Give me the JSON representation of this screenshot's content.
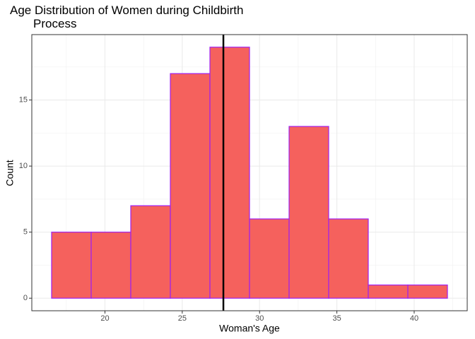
{
  "chart_data": {
    "type": "histogram",
    "title": "Age Distribution of Women during Childbirth\n       Process",
    "x_label": "Woman's Age",
    "y_label": "Count",
    "bins": [
      16.55,
      19.11,
      21.67,
      24.23,
      26.79,
      29.35,
      31.91,
      34.47,
      37.03,
      39.59,
      42.15
    ],
    "values": [
      5,
      5,
      7,
      17,
      19,
      6,
      13,
      6,
      1,
      1
    ],
    "color": "#f5615d",
    "edge_color": "#a020f0",
    "vline": 27.66,
    "vline_color": "#000000",
    "xlim": [
      15.27,
      43.43
    ],
    "ylim": [
      -0.95,
      19.95
    ],
    "xticks": [
      20,
      25,
      30,
      35,
      40
    ],
    "yticks": [
      0,
      5,
      10,
      15
    ],
    "grid": true
  }
}
